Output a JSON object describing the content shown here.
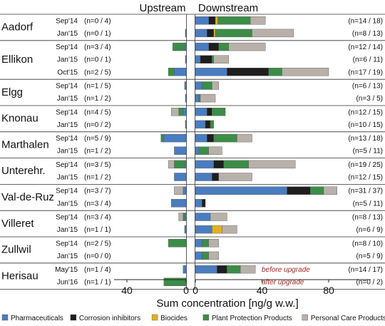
{
  "chart_data": {
    "type": "bar",
    "orientation": "horizontal",
    "layout": "stacked, diverging",
    "panels": [
      "Upstream",
      "Downstream"
    ],
    "xlabel": "Sum concentration [ng/g w.w.]",
    "upstream_ticks": [
      "40",
      "0"
    ],
    "downstream_ticks": [
      "0",
      "40",
      "80"
    ],
    "xlim_upstream": [
      50,
      0
    ],
    "xlim_downstream": [
      0,
      92
    ],
    "categories": [
      "Pharmaceuticals",
      "Corrosion inhibitors",
      "Biocides",
      "Plant Protection Products",
      "Personal Care Products"
    ],
    "colors": {
      "Pharmaceuticals": "#4a7cc0",
      "Corrosion inhibitors": "#1e1e1e",
      "Biocides": "#e2b025",
      "Plant Protection Products": "#3c8d47",
      "Personal Care Products": "#b8b1aa"
    },
    "grid": false,
    "legend_position": "bottom",
    "sites": [
      {
        "name": "Aadorf",
        "rows": [
          {
            "date": "Sep'14",
            "n_up": "(n=0 / 4)",
            "n_down": "(n=14 / 18)",
            "up": [
              0,
              0,
              0,
              0,
              0
            ],
            "down": [
              8,
              4,
              1.5,
              19.5,
              9
            ]
          },
          {
            "date": "Jan'15",
            "n_up": "(n=0 / 1)",
            "n_down": "(n=8 / 13)",
            "up": [
              0.5,
              0,
              0,
              0,
              0
            ],
            "down": [
              7,
              4,
              1,
              22,
              25
            ]
          }
        ]
      },
      {
        "name": "Ellikon",
        "rows": [
          {
            "date": "Sep'14",
            "n_up": "(n=3 / 4)",
            "n_down": "(n=12 / 14)",
            "up": [
              1,
              0,
              0,
              8,
              0
            ],
            "down": [
              8,
              6,
              0,
              6,
              22
            ]
          },
          {
            "date": "Jan'15",
            "n_up": "(n=0 / 1)",
            "n_down": "(n=6 / 11)",
            "up": [
              0.5,
              0,
              0,
              0,
              0
            ],
            "down": [
              3,
              7,
              0,
              1,
              9
            ]
          },
          {
            "date": "Oct'15",
            "n_up": "(n=2 / 5)",
            "n_down": "(n=17 / 19)",
            "up": [
              8,
              0,
              0,
              4,
              0
            ],
            "down": [
              19,
              25,
              0,
              8,
              28
            ]
          }
        ]
      },
      {
        "name": "Elgg",
        "rows": [
          {
            "date": "Sep'14",
            "n_up": "(n=1 / 5)",
            "n_down": "(n=6 / 13)",
            "up": [
              1,
              0,
              0,
              0,
              0
            ],
            "down": [
              4,
              0,
              0,
              6,
              4
            ]
          },
          {
            "date": "Jan'15",
            "n_up": "(n=1 / 2)",
            "n_down": "(n=3 / 5)",
            "up": [
              0.5,
              0,
              0,
              0,
              0
            ],
            "down": [
              2,
              0,
              0,
              1,
              9
            ]
          }
        ]
      },
      {
        "name": "Knonau",
        "rows": [
          {
            "date": "Sep'14",
            "n_up": "(n=4 / 5)",
            "n_down": "(n=12 / 15)",
            "up": [
              2,
              0,
              0,
              3,
              5
            ],
            "down": [
              7,
              3,
              0,
              8,
              0
            ]
          },
          {
            "date": "Jan'15",
            "n_up": "(n=0 / 2)",
            "n_down": "(n=10 / 15)",
            "up": [
              0.5,
              0,
              0,
              0,
              0
            ],
            "down": [
              6,
              3,
              0,
              2,
              0
            ]
          }
        ]
      },
      {
        "name": "Marthalen",
        "rows": [
          {
            "date": "Sep'14",
            "n_up": "(n=5 / 9)",
            "n_down": "(n=13 / 18)",
            "up": [
              15,
              0,
              0,
              2,
              0
            ],
            "down": [
              7,
              4,
              0,
              14,
              9
            ]
          },
          {
            "date": "Jan'15",
            "n_up": "(n=1 / 2)",
            "n_down": "(n=5 / 11)",
            "up": [
              8,
              0,
              0,
              0,
              0
            ],
            "down": [
              2,
              0,
              0,
              6,
              8
            ]
          }
        ]
      },
      {
        "name": "Unterehr.",
        "rows": [
          {
            "date": "Sep'14",
            "n_up": "(n=3 / 5)",
            "n_down": "(n=19 / 25)",
            "up": [
              1,
              0,
              0,
              7,
              4
            ],
            "down": [
              11,
              6,
              0,
              15,
              28
            ]
          },
          {
            "date": "Jan'15",
            "n_up": "(n=1 / 2)",
            "n_down": "(n=12 / 15)",
            "up": [
              8,
              0,
              0,
              0,
              0
            ],
            "down": [
              10,
              4,
              0,
              0,
              20
            ]
          }
        ]
      },
      {
        "name": "Val-de-Ruz",
        "rows": [
          {
            "date": "Sep'14",
            "n_up": "(n=3 / 7)",
            "n_down": "(n=31 / 37)",
            "up": [
              2,
              0,
              0,
              0,
              6
            ],
            "down": [
              55,
              14,
              0,
              8,
              8
            ]
          },
          {
            "date": "Jan'15",
            "n_up": "(n=3 / 4)",
            "n_down": "(n=5 / 11)",
            "up": [
              10,
              0,
              0,
              0,
              0
            ],
            "down": [
              4,
              2,
              0,
              0,
              0
            ]
          }
        ]
      },
      {
        "name": "Villeret",
        "rows": [
          {
            "date": "Sep'14",
            "n_up": "(n=3 / 4)",
            "n_down": "(n=8 / 13)",
            "up": [
              1,
              0,
              0,
              1,
              3
            ],
            "down": [
              9,
              0,
              0,
              0,
              10
            ]
          },
          {
            "date": "Jan'15",
            "n_up": "(n=1 / 1)",
            "n_down": "(n=6 / 9)",
            "up": [
              1,
              0,
              0,
              0,
              0
            ],
            "down": [
              10,
              0,
              6,
              0,
              9
            ]
          }
        ]
      },
      {
        "name": "Zullwil",
        "rows": [
          {
            "date": "Sep'14",
            "n_up": "(n=2 / 5)",
            "n_down": "(n=8 / 10)",
            "up": [
              0,
              0,
              0,
              12,
              0
            ],
            "down": [
              4,
              0,
              0,
              4,
              6
            ]
          },
          {
            "date": "Jan'15",
            "n_up": "(n=0 / 0)",
            "n_down": "(n=5 / 9)",
            "up": [
              0,
              0,
              0,
              0,
              0
            ],
            "down": [
              4,
              0,
              0,
              4,
              6
            ]
          }
        ]
      },
      {
        "name": "Herisau",
        "rows": [
          {
            "date": "May'15",
            "n_up": "(n=1 / 4)",
            "n_down": "(n=14 / 17)",
            "up": [
              2,
              0,
              0,
              0,
              0
            ],
            "down": [
              13,
              6,
              0,
              8,
              9
            ],
            "note": "before upgrade"
          },
          {
            "date": "Jun'16",
            "n_up": "(n=1 / 1)",
            "n_down": "(n=0 / 2)",
            "up": [
              0,
              0,
              0,
              15,
              0
            ],
            "down": [
              0,
              0,
              0,
              0,
              0
            ],
            "note": "after upgrade"
          }
        ]
      }
    ]
  }
}
